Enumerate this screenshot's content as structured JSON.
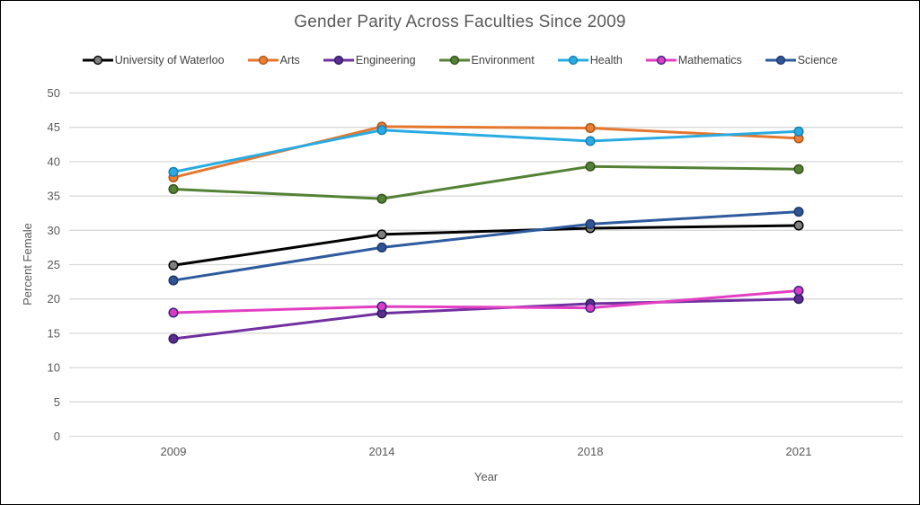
{
  "chart_data": {
    "type": "line",
    "title": "Gender Parity Across Faculties Since 2009",
    "xlabel": "Year",
    "ylabel": "Percent Female",
    "categories": [
      "2009",
      "2014",
      "2018",
      "2021"
    ],
    "ylim": [
      0,
      50
    ],
    "yticks": [
      0,
      5,
      10,
      15,
      20,
      25,
      30,
      35,
      40,
      45,
      50
    ],
    "grid": "horizontal",
    "legend_position": "top",
    "series": [
      {
        "name": "University of Waterloo",
        "values": [
          24.9,
          29.4,
          30.3,
          30.7
        ],
        "line_color": "#000000",
        "marker_fill": "#808080",
        "marker_stroke": "#000000"
      },
      {
        "name": "Arts",
        "values": [
          37.7,
          45.1,
          44.9,
          43.4
        ],
        "line_color": "#E4772E",
        "marker_fill": "#ED7D31",
        "marker_stroke": "#A85519"
      },
      {
        "name": "Engineering",
        "values": [
          14.2,
          17.9,
          19.3,
          20.0
        ],
        "line_color": "#7030A0",
        "marker_fill": "#5B2D91",
        "marker_stroke": "#2D1B5E"
      },
      {
        "name": "Environment",
        "values": [
          36.0,
          34.6,
          39.3,
          38.9
        ],
        "line_color": "#548235",
        "marker_fill": "#548235",
        "marker_stroke": "#36511F"
      },
      {
        "name": "Health",
        "values": [
          38.5,
          44.6,
          43.0,
          44.4
        ],
        "line_color": "#29ABE2",
        "marker_fill": "#29ABE2",
        "marker_stroke": "#1B7FB5"
      },
      {
        "name": "Mathematics",
        "values": [
          18.0,
          18.9,
          18.7,
          21.2
        ],
        "line_color": "#E23FC2",
        "marker_fill": "#DD3BC4",
        "marker_stroke": "#312782"
      },
      {
        "name": "Science",
        "values": [
          22.7,
          27.5,
          30.9,
          32.7
        ],
        "line_color": "#2E5B9E",
        "marker_fill": "#2F5597",
        "marker_stroke": "#1F3864"
      }
    ],
    "colors": {
      "gridline": "#D9D9D9",
      "axis_text": "#595959",
      "legend_text": "#404040",
      "background": "#FFFFFF",
      "frame_border": "#000000"
    }
  }
}
